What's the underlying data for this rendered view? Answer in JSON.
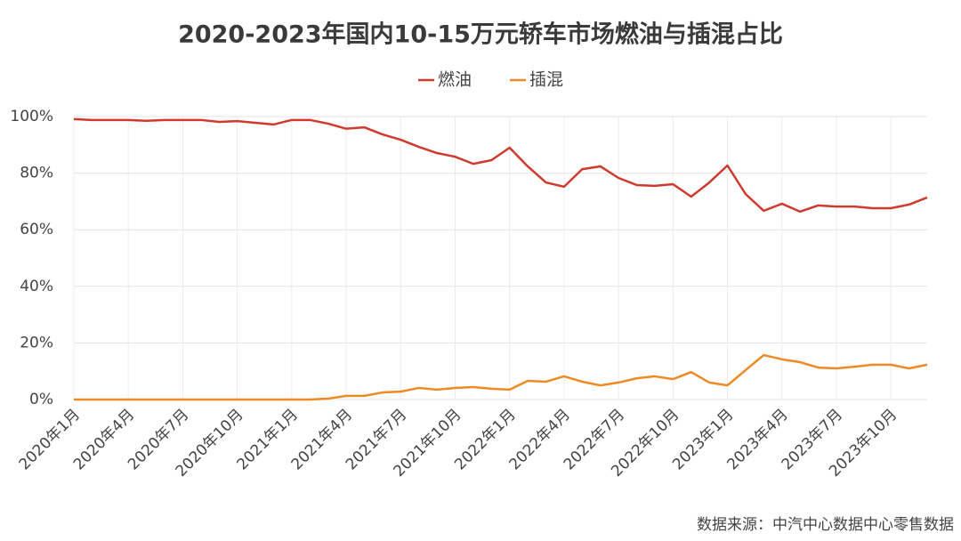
{
  "chart_data": {
    "type": "line",
    "title": "2020-2023年国内10-15万元轿车市场燃油与插混占比",
    "source": "数据来源：中汽中心数据中心零售数据",
    "categories": [
      "2020年1月",
      null,
      null,
      "2020年4月",
      null,
      null,
      "2020年7月",
      null,
      null,
      "2020年10月",
      null,
      null,
      "2021年1月",
      null,
      null,
      "2021年4月",
      null,
      null,
      "2021年7月",
      null,
      null,
      "2021年10月",
      null,
      null,
      "2022年1月",
      null,
      null,
      "2022年4月",
      null,
      null,
      "2022年7月",
      null,
      null,
      "2022年10月",
      null,
      null,
      "2023年1月",
      null,
      null,
      "2023年4月",
      null,
      null,
      "2023年7月",
      null,
      null,
      "2023年10月",
      null,
      null
    ],
    "series": [
      {
        "name": "燃油",
        "color": "#d03a2e",
        "values": [
          99.1,
          98.8,
          98.8,
          98.8,
          98.5,
          98.8,
          98.8,
          98.8,
          98.1,
          98.4,
          97.8,
          97.2,
          98.8,
          98.8,
          97.5,
          95.7,
          96.2,
          93.7,
          91.8,
          89.3,
          87.1,
          85.8,
          83.3,
          84.6,
          89.0,
          82.4,
          76.7,
          75.2,
          81.4,
          82.4,
          78.3,
          75.8,
          75.5,
          76.1,
          71.7,
          76.7,
          82.7,
          72.6,
          66.7,
          69.2,
          66.4,
          68.6,
          68.2,
          68.2,
          67.6,
          67.6,
          68.9,
          71.4
        ]
      },
      {
        "name": "插混",
        "color": "#ee8a24",
        "values": [
          0,
          0,
          0,
          0,
          0,
          0,
          0,
          0,
          0,
          0,
          0,
          0,
          0,
          0,
          0.3,
          1.3,
          1.3,
          2.5,
          2.8,
          4.1,
          3.5,
          4.1,
          4.4,
          3.8,
          3.5,
          6.6,
          6.3,
          8.2,
          6.3,
          5.0,
          6.0,
          7.5,
          8.2,
          7.2,
          9.7,
          6.0,
          5.0,
          10.4,
          15.7,
          14.2,
          13.2,
          11.3,
          11.0,
          11.6,
          12.3,
          12.3,
          11.0,
          12.3
        ]
      }
    ],
    "ylim": [
      0,
      100
    ],
    "yticks": [
      {
        "value": 0,
        "label": "0%"
      },
      {
        "value": 20,
        "label": "20%"
      },
      {
        "value": 40,
        "label": "40%"
      },
      {
        "value": 60,
        "label": "60%"
      },
      {
        "value": 80,
        "label": "80%"
      },
      {
        "value": 100,
        "label": "100%"
      }
    ],
    "grid": true,
    "legend": "top"
  }
}
